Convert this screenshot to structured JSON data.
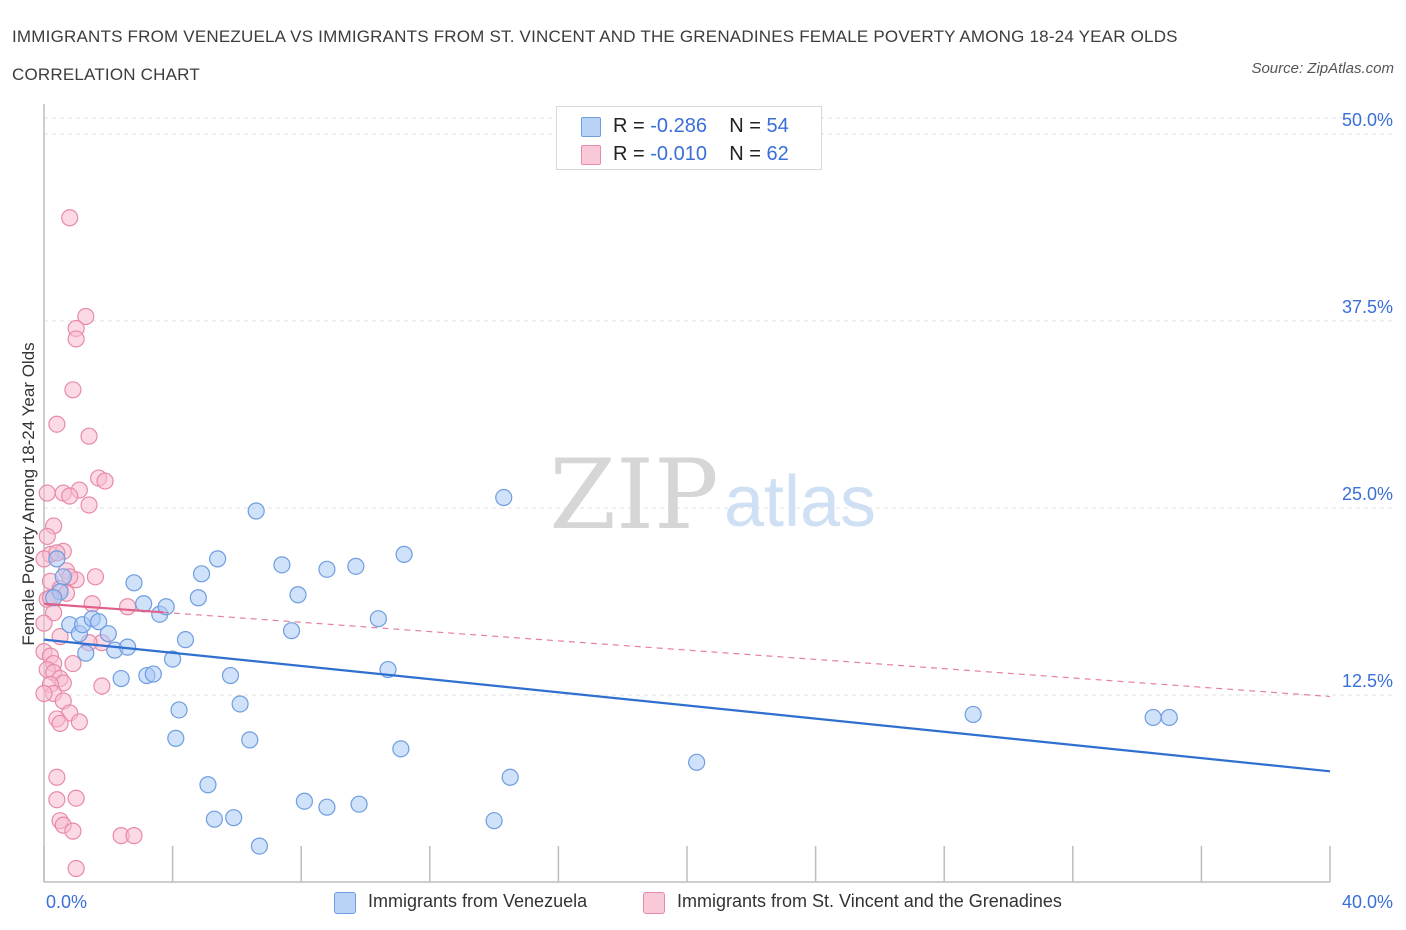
{
  "title": "IMMIGRANTS FROM VENEZUELA VS IMMIGRANTS FROM ST. VINCENT AND THE GRENADINES FEMALE POVERTY AMONG 18-24 YEAR OLDS CORRELATION CHART",
  "source": "Source: ZipAtlas.com",
  "watermark": {
    "zip": "ZIP",
    "atlas": "atlas"
  },
  "colors": {
    "blue_fill": "#a9c8f5",
    "blue_stroke": "#6e9de0",
    "blue_line": "#2f6fd0",
    "pink_fill": "#f7bcd0",
    "pink_stroke": "#e88aa8",
    "pink_line": "#e0608a",
    "axis_label": "#3a6fd8",
    "grid": "#e2e2e2"
  },
  "legend_top": [
    {
      "r_label": "R =",
      "r_value": "-0.286",
      "n_label": "N =",
      "n_value": "54"
    },
    {
      "r_label": "R =",
      "r_value": "-0.010",
      "n_label": "N =",
      "n_value": "62"
    }
  ],
  "legend_bottom": [
    "Immigrants from Venezuela",
    "Immigrants from St. Vincent and the Grenadines"
  ],
  "chart_data": {
    "type": "scatter",
    "title": "IMMIGRANTS FROM VENEZUELA VS IMMIGRANTS FROM ST. VINCENT AND THE GRENADINES FEMALE POVERTY AMONG 18-24 YEAR OLDS CORRELATION CHART",
    "xlabel": "",
    "ylabel": "Female Poverty Among 18-24 Year Olds",
    "xlim": [
      0,
      40
    ],
    "ylim": [
      0,
      50
    ],
    "x_tick_labels": [
      "0.0%",
      "40.0%"
    ],
    "y_ticks": [
      12.5,
      25.0,
      37.5,
      50.0
    ],
    "y_tick_labels": [
      "12.5%",
      "25.0%",
      "37.5%",
      "50.0%"
    ],
    "grid": true,
    "legend_position": "top-center",
    "series": [
      {
        "name": "Immigrants from Venezuela",
        "R": -0.286,
        "N": 54,
        "trend": {
          "x": [
            0,
            40
          ],
          "y": [
            16.2,
            7.4
          ],
          "style": "solid"
        },
        "points": [
          [
            0.4,
            21.6
          ],
          [
            0.6,
            20.4
          ],
          [
            0.5,
            19.4
          ],
          [
            0.3,
            19.0
          ],
          [
            0.8,
            17.2
          ],
          [
            1.1,
            16.6
          ],
          [
            1.2,
            17.2
          ],
          [
            1.5,
            17.6
          ],
          [
            1.3,
            15.3
          ],
          [
            1.7,
            17.4
          ],
          [
            2.2,
            15.5
          ],
          [
            2.6,
            15.7
          ],
          [
            2.8,
            20.0
          ],
          [
            2.4,
            13.6
          ],
          [
            3.2,
            13.8
          ],
          [
            3.4,
            13.9
          ],
          [
            3.1,
            18.6
          ],
          [
            3.6,
            17.9
          ],
          [
            3.8,
            18.4
          ],
          [
            4.0,
            14.9
          ],
          [
            4.4,
            16.2
          ],
          [
            4.8,
            19.0
          ],
          [
            4.9,
            20.6
          ],
          [
            5.4,
            21.6
          ],
          [
            5.8,
            13.8
          ],
          [
            6.1,
            11.9
          ],
          [
            4.2,
            11.5
          ],
          [
            4.1,
            9.6
          ],
          [
            6.4,
            9.5
          ],
          [
            5.1,
            6.5
          ],
          [
            5.3,
            4.2
          ],
          [
            5.9,
            4.3
          ],
          [
            6.7,
            2.4
          ],
          [
            6.6,
            24.8
          ],
          [
            7.4,
            21.2
          ],
          [
            7.7,
            16.8
          ],
          [
            7.9,
            19.2
          ],
          [
            8.1,
            5.4
          ],
          [
            8.8,
            20.9
          ],
          [
            8.8,
            5.0
          ],
          [
            9.7,
            21.1
          ],
          [
            9.8,
            5.2
          ],
          [
            10.4,
            17.6
          ],
          [
            10.7,
            14.2
          ],
          [
            11.1,
            8.9
          ],
          [
            11.2,
            21.9
          ],
          [
            14.3,
            25.7
          ],
          [
            14.0,
            4.1
          ],
          [
            14.5,
            7.0
          ],
          [
            20.3,
            8.0
          ],
          [
            28.9,
            11.2
          ],
          [
            34.5,
            11.0
          ],
          [
            35.0,
            11.0
          ],
          [
            2.0,
            16.6
          ]
        ]
      },
      {
        "name": "Immigrants from St. Vincent and the Grenadines",
        "R": -0.01,
        "N": 62,
        "trend": {
          "x": [
            0,
            40
          ],
          "y": [
            18.6,
            12.4
          ],
          "style": "solid-then-dashed",
          "solid_until_x": 3.7
        },
        "points": [
          [
            0.8,
            44.4
          ],
          [
            1.3,
            37.8
          ],
          [
            1.0,
            37.0
          ],
          [
            1.0,
            36.3
          ],
          [
            0.9,
            32.9
          ],
          [
            0.4,
            30.6
          ],
          [
            1.4,
            29.8
          ],
          [
            1.7,
            27.0
          ],
          [
            1.9,
            26.8
          ],
          [
            1.1,
            26.2
          ],
          [
            0.6,
            26.0
          ],
          [
            0.8,
            25.8
          ],
          [
            1.4,
            25.2
          ],
          [
            0.1,
            26.0
          ],
          [
            0.3,
            23.8
          ],
          [
            0.1,
            23.1
          ],
          [
            0.6,
            22.1
          ],
          [
            0.2,
            21.9
          ],
          [
            0.0,
            21.6
          ],
          [
            0.7,
            20.8
          ],
          [
            1.0,
            20.2
          ],
          [
            0.8,
            20.4
          ],
          [
            1.6,
            20.4
          ],
          [
            0.2,
            20.1
          ],
          [
            0.5,
            19.6
          ],
          [
            0.7,
            19.3
          ],
          [
            0.1,
            18.9
          ],
          [
            1.5,
            18.6
          ],
          [
            2.6,
            18.4
          ],
          [
            0.3,
            18.0
          ],
          [
            0.0,
            17.3
          ],
          [
            0.5,
            16.4
          ],
          [
            1.8,
            16.0
          ],
          [
            1.4,
            16.0
          ],
          [
            0.0,
            15.4
          ],
          [
            0.2,
            15.1
          ],
          [
            0.3,
            14.6
          ],
          [
            0.9,
            14.6
          ],
          [
            0.1,
            14.2
          ],
          [
            0.3,
            14.0
          ],
          [
            0.5,
            13.6
          ],
          [
            0.6,
            13.3
          ],
          [
            0.2,
            13.2
          ],
          [
            1.8,
            13.1
          ],
          [
            0.3,
            12.6
          ],
          [
            0.0,
            12.6
          ],
          [
            0.6,
            12.1
          ],
          [
            0.8,
            11.3
          ],
          [
            0.4,
            10.9
          ],
          [
            0.5,
            10.6
          ],
          [
            1.1,
            10.7
          ],
          [
            0.4,
            7.0
          ],
          [
            0.4,
            5.5
          ],
          [
            1.0,
            5.6
          ],
          [
            0.5,
            4.1
          ],
          [
            0.6,
            3.8
          ],
          [
            0.9,
            3.4
          ],
          [
            2.4,
            3.1
          ],
          [
            2.8,
            3.1
          ],
          [
            1.0,
            0.9
          ],
          [
            0.2,
            19.0
          ],
          [
            0.4,
            22.0
          ]
        ]
      }
    ]
  }
}
